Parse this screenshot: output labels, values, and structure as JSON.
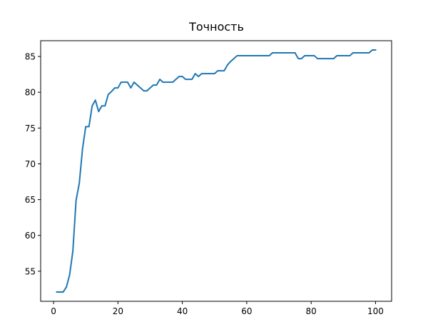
{
  "chart_data": {
    "type": "line",
    "title": "Точность",
    "xlabel": "",
    "ylabel": "",
    "xlim": [
      -4,
      105
    ],
    "ylim": [
      50.8,
      87.2
    ],
    "xticks": [
      0,
      20,
      40,
      60,
      80,
      100
    ],
    "yticks": [
      55,
      60,
      65,
      70,
      75,
      80,
      85
    ],
    "grid": false,
    "line_color": "#1f77b4",
    "series": [
      {
        "name": "Точность",
        "x": [
          1,
          2,
          3,
          4,
          5,
          6,
          7,
          8,
          9,
          10,
          11,
          12,
          13,
          14,
          15,
          16,
          17,
          18,
          19,
          20,
          21,
          22,
          23,
          24,
          25,
          26,
          27,
          28,
          29,
          30,
          31,
          32,
          33,
          34,
          35,
          36,
          37,
          38,
          39,
          40,
          41,
          42,
          43,
          44,
          45,
          46,
          47,
          48,
          49,
          50,
          51,
          52,
          53,
          54,
          55,
          56,
          57,
          58,
          59,
          60,
          61,
          62,
          63,
          64,
          65,
          66,
          67,
          68,
          69,
          70,
          71,
          72,
          73,
          74,
          75,
          76,
          77,
          78,
          79,
          80,
          81,
          82,
          83,
          84,
          85,
          86,
          87,
          88,
          89,
          90,
          91,
          92,
          93,
          94,
          95,
          96,
          97,
          98,
          99,
          100
        ],
        "y": [
          52.1,
          52.1,
          52.1,
          52.8,
          54.5,
          57.8,
          64.9,
          67.3,
          72.1,
          75.2,
          75.2,
          78.1,
          78.9,
          77.3,
          78.1,
          78.1,
          79.7,
          80.1,
          80.6,
          80.6,
          81.4,
          81.4,
          81.4,
          80.6,
          81.4,
          81.0,
          80.6,
          80.2,
          80.2,
          80.6,
          81.0,
          81.0,
          81.8,
          81.4,
          81.4,
          81.4,
          81.4,
          81.8,
          82.2,
          82.2,
          81.8,
          81.8,
          81.8,
          82.6,
          82.2,
          82.6,
          82.6,
          82.6,
          82.6,
          82.6,
          83.0,
          83.0,
          83.0,
          83.8,
          84.3,
          84.7,
          85.1,
          85.1,
          85.1,
          85.1,
          85.1,
          85.1,
          85.1,
          85.1,
          85.1,
          85.1,
          85.1,
          85.5,
          85.5,
          85.5,
          85.5,
          85.5,
          85.5,
          85.5,
          85.5,
          84.7,
          84.7,
          85.1,
          85.1,
          85.1,
          85.1,
          84.7,
          84.7,
          84.7,
          84.7,
          84.7,
          84.7,
          85.1,
          85.1,
          85.1,
          85.1,
          85.1,
          85.5,
          85.5,
          85.5,
          85.5,
          85.5,
          85.5,
          85.9,
          85.9
        ]
      }
    ]
  }
}
